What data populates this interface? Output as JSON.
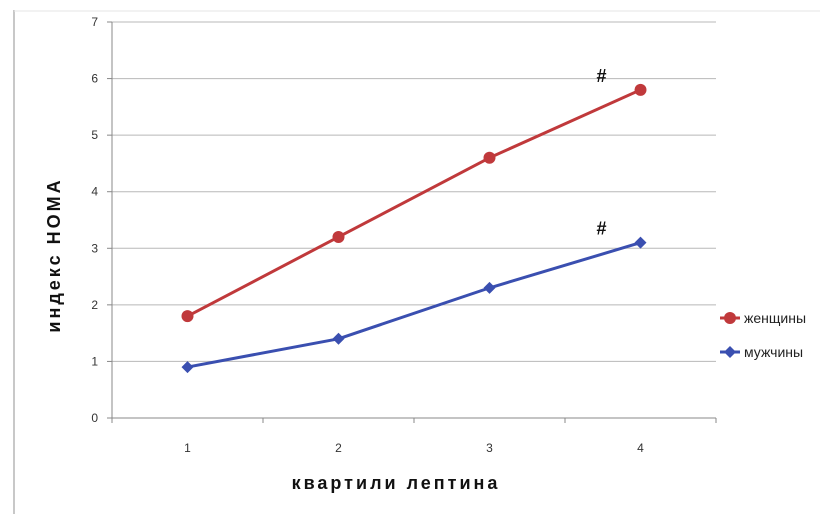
{
  "chart_data": {
    "type": "line",
    "title": "",
    "xlabel": "квартили лептина",
    "ylabel": "индекс НОМА",
    "categories": [
      "1",
      "2",
      "3",
      "4"
    ],
    "ylim": [
      0,
      7
    ],
    "yticks": [
      "0",
      "1",
      "2",
      "3",
      "4",
      "5",
      "6",
      "7"
    ],
    "grid": true,
    "legend_position": "right",
    "series": [
      {
        "name": "женщины",
        "values": [
          1.8,
          3.2,
          4.6,
          5.8
        ],
        "color": "#c0393b",
        "marker": "circle"
      },
      {
        "name": "мужчины",
        "values": [
          0.9,
          1.4,
          2.3,
          3.1
        ],
        "color": "#3a4fb0",
        "marker": "diamond"
      }
    ],
    "annotations": [
      {
        "text": "#",
        "series": 0,
        "category": "4"
      },
      {
        "text": "#",
        "series": 1,
        "category": "4"
      }
    ]
  }
}
